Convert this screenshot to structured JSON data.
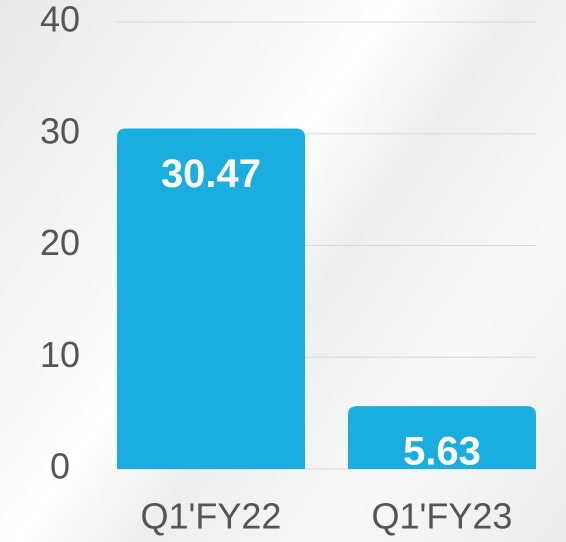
{
  "chart_data": {
    "type": "bar",
    "categories": [
      "Q1'FY22",
      "Q1'FY23"
    ],
    "values": [
      30.47,
      5.63
    ],
    "color": "#1aaee0",
    "ylim": [
      0,
      40
    ],
    "yticks": [
      0,
      10,
      20,
      30,
      40
    ],
    "grid": true
  }
}
